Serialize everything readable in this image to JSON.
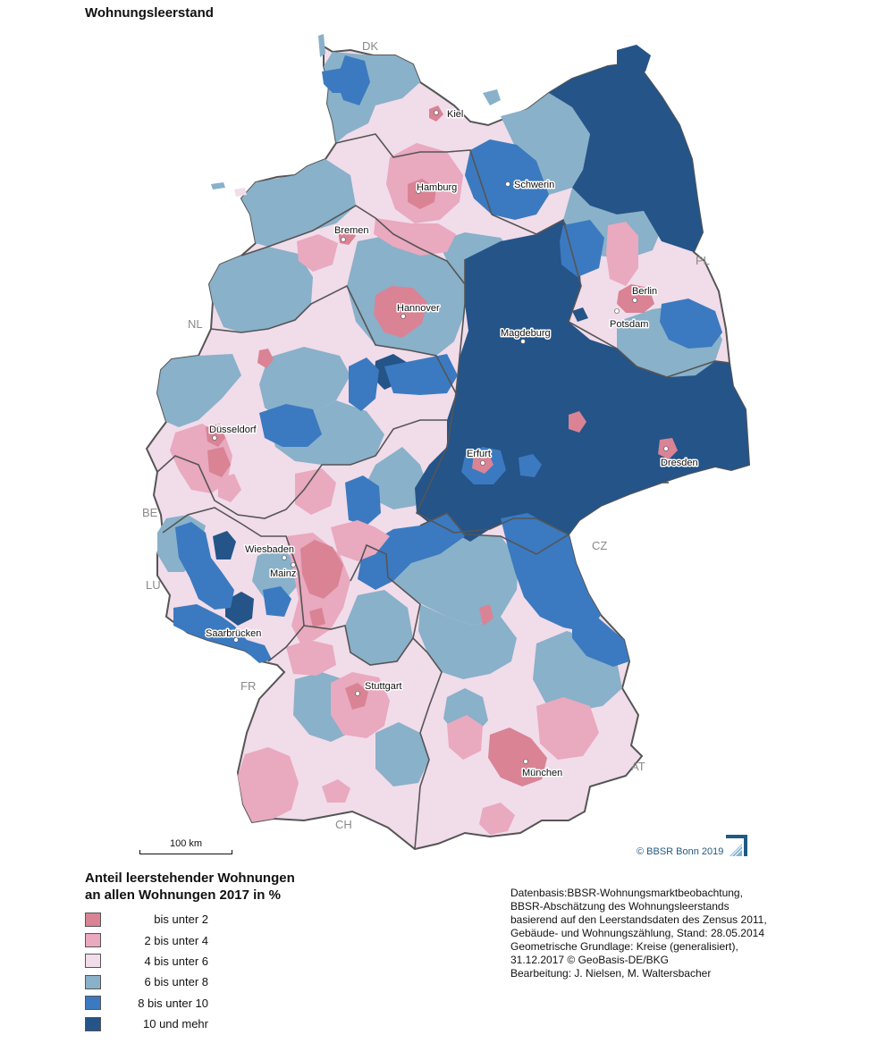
{
  "title": "Wohnungsleerstand",
  "colors": {
    "class1": "#d98395",
    "class2": "#e9a9bf",
    "class3": "#f1dcea",
    "class4": "#89b1c9",
    "class5": "#3b7ac0",
    "class6": "#245488",
    "border": "#555555"
  },
  "cities": [
    {
      "name": "Kiel"
    },
    {
      "name": "Hamburg"
    },
    {
      "name": "Schwerin"
    },
    {
      "name": "Bremen"
    },
    {
      "name": "Hannover"
    },
    {
      "name": "Berlin"
    },
    {
      "name": "Potsdam"
    },
    {
      "name": "Magdeburg"
    },
    {
      "name": "Düsseldorf"
    },
    {
      "name": "Erfurt"
    },
    {
      "name": "Dresden"
    },
    {
      "name": "Wiesbaden"
    },
    {
      "name": "Mainz"
    },
    {
      "name": "Saarbrücken"
    },
    {
      "name": "Stuttgart"
    },
    {
      "name": "München"
    }
  ],
  "countries": [
    "DK",
    "NL",
    "PL",
    "BE",
    "LU",
    "CZ",
    "FR",
    "AT",
    "CH"
  ],
  "scale_label": "100 km",
  "credit": "© BBSR Bonn 2019",
  "legend": {
    "title_line1": "Anteil leerstehender Wohnungen",
    "title_line2": "an allen Wohnungen 2017 in %",
    "items": [
      {
        "label": "bis unter 2",
        "color": "#d98395"
      },
      {
        "label": "2 bis unter 4",
        "color": "#e9a9bf"
      },
      {
        "label": "4 bis unter 6",
        "color": "#f1dcea"
      },
      {
        "label": "6 bis unter 8",
        "color": "#89b1c9"
      },
      {
        "label": "8 bis unter 10",
        "color": "#3b7ac0"
      },
      {
        "label": "10 und mehr",
        "color": "#245488"
      }
    ]
  },
  "source_lines": [
    "Datenbasis:BBSR-Wohnungsmarktbeobachtung,",
    "BBSR-Abschätzung des Wohnungsleerstands",
    "basierend auf den Leerstandsdaten des Zensus 2011,",
    "Gebäude- und Wohnungszählung, Stand: 28.05.2014",
    "Geometrische Grundlage: Kreise (generalisiert),",
    "31.12.2017 © GeoBasis-DE/BKG",
    "Bearbeitung: J. Nielsen, M. Waltersbacher"
  ]
}
